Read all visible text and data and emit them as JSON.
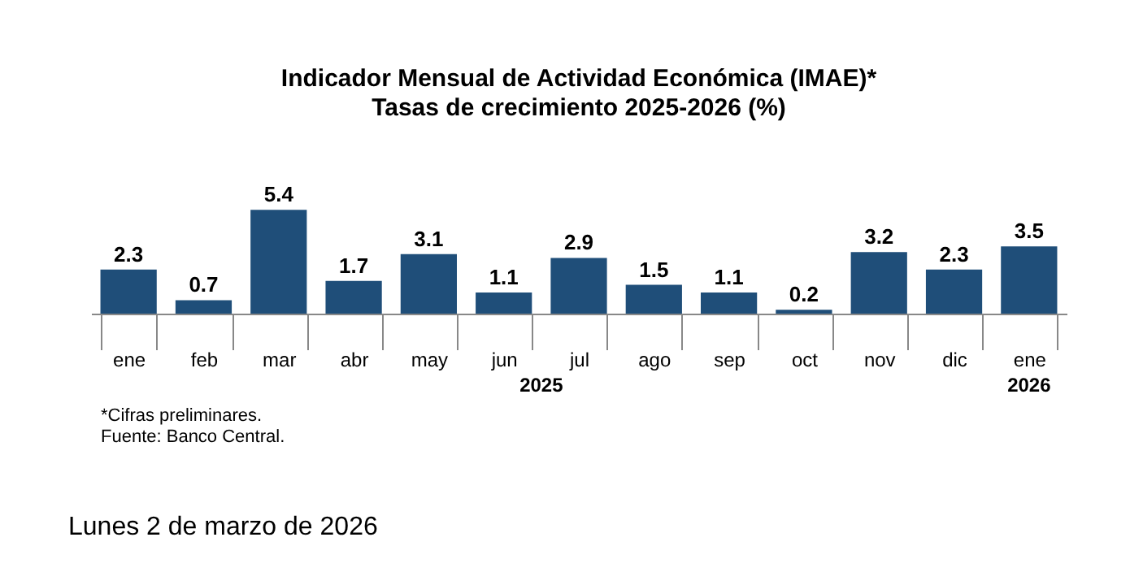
{
  "chart_data": {
    "type": "bar",
    "title": "Indicador Mensual de Actividad Económica (IMAE)*",
    "subtitle": "Tasas de crecimiento 2025-2026 (%)",
    "categories": [
      "ene",
      "feb",
      "mar",
      "abr",
      "may",
      "jun",
      "jul",
      "ago",
      "sep",
      "oct",
      "nov",
      "dic",
      "ene"
    ],
    "values": [
      2.3,
      0.7,
      5.4,
      1.7,
      3.1,
      1.1,
      2.9,
      1.5,
      1.1,
      0.2,
      3.2,
      2.3,
      3.5
    ],
    "color": "#1f4e79",
    "data_labels": true,
    "annotations": [
      "2025",
      "2026",
      "*Cifras preliminares.",
      "Fuente: Banco Central.",
      "Lunes 2 de marzo de 2026"
    ]
  }
}
